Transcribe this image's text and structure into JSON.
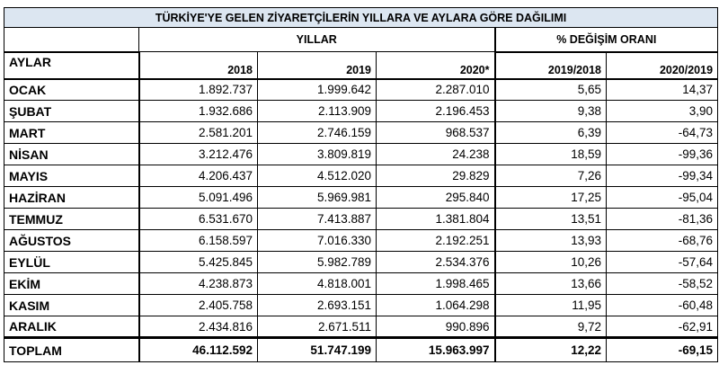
{
  "title": "TÜRKİYE'YE GELEN ZİYARETÇİLERİN YILLARA VE AYLARA GÖRE DAĞILIMI",
  "group_years": "YILLAR",
  "group_change": "% DEĞİŞİM ORANI",
  "columns": {
    "month": "AYLAR",
    "y2018": "2018",
    "y2019": "2019",
    "y2020": "2020*",
    "p1918": "2019/2018",
    "p2019": "2020/2019"
  },
  "rows": [
    {
      "month": "OCAK",
      "y2018": "1.892.737",
      "y2019": "1.999.642",
      "y2020": "2.287.010",
      "p1918": "5,65",
      "p2019": "14,37"
    },
    {
      "month": "ŞUBAT",
      "y2018": "1.932.686",
      "y2019": "2.113.909",
      "y2020": "2.196.453",
      "p1918": "9,38",
      "p2019": "3,90"
    },
    {
      "month": "MART",
      "y2018": "2.581.201",
      "y2019": "2.746.159",
      "y2020": "968.537",
      "p1918": "6,39",
      "p2019": "-64,73"
    },
    {
      "month": "NİSAN",
      "y2018": "3.212.476",
      "y2019": "3.809.819",
      "y2020": "24.238",
      "p1918": "18,59",
      "p2019": "-99,36"
    },
    {
      "month": "MAYIS",
      "y2018": "4.206.437",
      "y2019": "4.512.020",
      "y2020": "29.829",
      "p1918": "7,26",
      "p2019": "-99,34"
    },
    {
      "month": "HAZİRAN",
      "y2018": "5.091.496",
      "y2019": "5.969.981",
      "y2020": "295.840",
      "p1918": "17,25",
      "p2019": "-95,04"
    },
    {
      "month": "TEMMUZ",
      "y2018": "6.531.670",
      "y2019": "7.413.887",
      "y2020": "1.381.804",
      "p1918": "13,51",
      "p2019": "-81,36"
    },
    {
      "month": "AĞUSTOS",
      "y2018": "6.158.597",
      "y2019": "7.016.330",
      "y2020": "2.192.251",
      "p1918": "13,93",
      "p2019": "-68,76"
    },
    {
      "month": "EYLÜL",
      "y2018": "5.425.845",
      "y2019": "5.982.789",
      "y2020": "2.534.376",
      "p1918": "10,26",
      "p2019": "-57,64"
    },
    {
      "month": "EKİM",
      "y2018": "4.238.873",
      "y2019": "4.818.001",
      "y2020": "1.998.465",
      "p1918": "13,66",
      "p2019": "-58,52"
    },
    {
      "month": "KASIM",
      "y2018": "2.405.758",
      "y2019": "2.693.151",
      "y2020": "1.064.298",
      "p1918": "11,95",
      "p2019": "-60,48"
    },
    {
      "month": "ARALIK",
      "y2018": "2.434.816",
      "y2019": "2.671.511",
      "y2020": "990.896",
      "p1918": "9,72",
      "p2019": "-62,91"
    }
  ],
  "total": {
    "month": "TOPLAM",
    "y2018": "46.112.592",
    "y2019": "51.747.199",
    "y2020": "15.963.997",
    "p1918": "12,22",
    "p2019": "-69,15"
  }
}
